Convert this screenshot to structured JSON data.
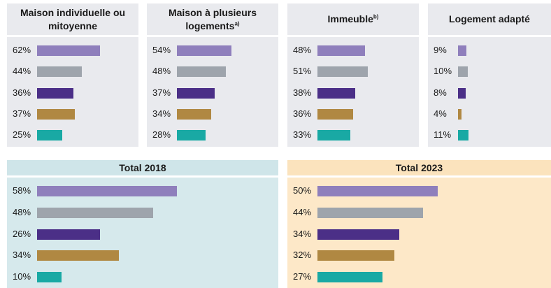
{
  "chart_data": [
    {
      "type": "bar",
      "title": "Maison individuelle ou mitoyenne",
      "values": [
        62,
        44,
        36,
        37,
        25
      ],
      "value_labels": [
        "62%",
        "44%",
        "36%",
        "37%",
        "25%"
      ],
      "colors": [
        "#8f7fbc",
        "#9ea4ac",
        "#4b2f87",
        "#b08842",
        "#19a9a4"
      ]
    },
    {
      "type": "bar",
      "title": "Maison à plusieurs logements",
      "title_superscript": "a)",
      "values": [
        54,
        48,
        37,
        34,
        28
      ],
      "value_labels": [
        "54%",
        "48%",
        "37%",
        "34%",
        "28%"
      ],
      "colors": [
        "#8f7fbc",
        "#9ea4ac",
        "#4b2f87",
        "#b08842",
        "#19a9a4"
      ]
    },
    {
      "type": "bar",
      "title": "Immeuble",
      "title_superscript": "b)",
      "values": [
        48,
        51,
        38,
        36,
        33
      ],
      "value_labels": [
        "48%",
        "51%",
        "38%",
        "36%",
        "33%"
      ],
      "colors": [
        "#8f7fbc",
        "#9ea4ac",
        "#4b2f87",
        "#b08842",
        "#19a9a4"
      ]
    },
    {
      "type": "bar",
      "title": "Logement adapté",
      "values": [
        9,
        10,
        8,
        4,
        11
      ],
      "value_labels": [
        "9%",
        "10%",
        "8%",
        "4%",
        "11%"
      ],
      "colors": [
        "#8f7fbc",
        "#9ea4ac",
        "#4b2f87",
        "#b08842",
        "#19a9a4"
      ]
    },
    {
      "type": "bar",
      "title": "Total 2018",
      "values": [
        58,
        48,
        26,
        34,
        10
      ],
      "value_labels": [
        "58%",
        "48%",
        "26%",
        "34%",
        "10%"
      ],
      "colors": [
        "#8f7fbc",
        "#9ea4ac",
        "#4b2f87",
        "#b08842",
        "#19a9a4"
      ]
    },
    {
      "type": "bar",
      "title": "Total 2023",
      "values": [
        50,
        44,
        34,
        32,
        27
      ],
      "value_labels": [
        "50%",
        "44%",
        "34%",
        "32%",
        "27%"
      ],
      "colors": [
        "#8f7fbc",
        "#9ea4ac",
        "#4b2f87",
        "#b08842",
        "#19a9a4"
      ]
    }
  ]
}
